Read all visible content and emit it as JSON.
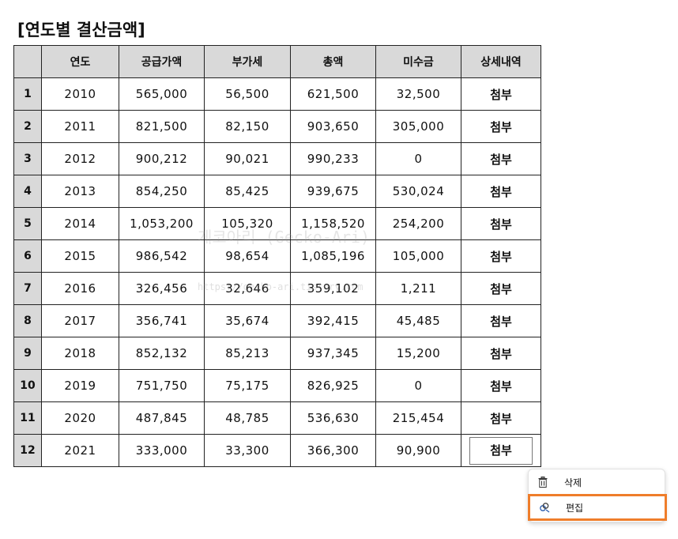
{
  "title": "[연도별 결산금액]",
  "table": {
    "headers": [
      "",
      "연도",
      "공급가액",
      "부가세",
      "총액",
      "미수금",
      "상세내역"
    ],
    "rows": [
      {
        "idx": "1",
        "year": "2010",
        "supply": "565,000",
        "vat": "56,500",
        "total": "621,500",
        "unpaid": "32,500",
        "detail": "첨부"
      },
      {
        "idx": "2",
        "year": "2011",
        "supply": "821,500",
        "vat": "82,150",
        "total": "903,650",
        "unpaid": "305,000",
        "detail": "첨부"
      },
      {
        "idx": "3",
        "year": "2012",
        "supply": "900,212",
        "vat": "90,021",
        "total": "990,233",
        "unpaid": "0",
        "detail": "첨부"
      },
      {
        "idx": "4",
        "year": "2013",
        "supply": "854,250",
        "vat": "85,425",
        "total": "939,675",
        "unpaid": "530,024",
        "detail": "첨부"
      },
      {
        "idx": "5",
        "year": "2014",
        "supply": "1,053,200",
        "vat": "105,320",
        "total": "1,158,520",
        "unpaid": "254,200",
        "detail": "첨부"
      },
      {
        "idx": "6",
        "year": "2015",
        "supply": "986,542",
        "vat": "98,654",
        "total": "1,085,196",
        "unpaid": "105,000",
        "detail": "첨부"
      },
      {
        "idx": "7",
        "year": "2016",
        "supply": "326,456",
        "vat": "32,646",
        "total": "359,102",
        "unpaid": "1,211",
        "detail": "첨부"
      },
      {
        "idx": "8",
        "year": "2017",
        "supply": "356,741",
        "vat": "35,674",
        "total": "392,415",
        "unpaid": "45,485",
        "detail": "첨부"
      },
      {
        "idx": "9",
        "year": "2018",
        "supply": "852,132",
        "vat": "85,213",
        "total": "937,345",
        "unpaid": "15,200",
        "detail": "첨부"
      },
      {
        "idx": "10",
        "year": "2019",
        "supply": "751,750",
        "vat": "75,175",
        "total": "826,925",
        "unpaid": "0",
        "detail": "첨부"
      },
      {
        "idx": "11",
        "year": "2020",
        "supply": "487,845",
        "vat": "48,785",
        "total": "536,630",
        "unpaid": "215,454",
        "detail": "첨부"
      },
      {
        "idx": "12",
        "year": "2021",
        "supply": "333,000",
        "vat": "33,300",
        "total": "366,300",
        "unpaid": "90,900",
        "detail": "첨부"
      }
    ]
  },
  "watermark": {
    "text": "게코아리 (Gecko-Ari)",
    "url": "https://gecko-ari.tistory.com"
  },
  "context_menu": {
    "delete_label": "삭제",
    "delete_icon": "trash-icon",
    "edit_label": "편집",
    "edit_icon": "link-edit-icon",
    "highlight_color": "#ef7d2a"
  }
}
